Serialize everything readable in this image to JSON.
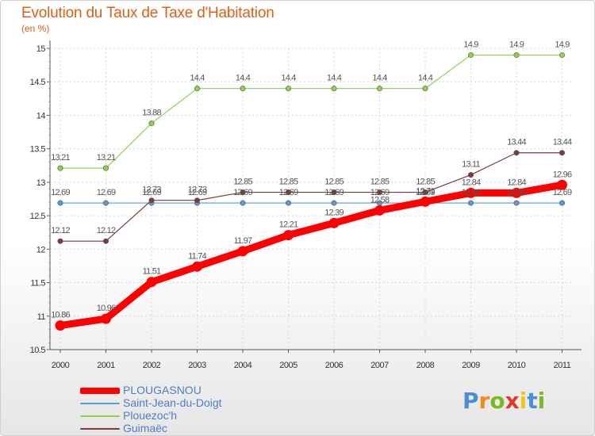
{
  "header": {
    "title": "Evolution du Taux de Taxe d'Habitation",
    "subtitle": "(en %)"
  },
  "chart_data": {
    "type": "line",
    "title": "Evolution du Taux de Taxe d'Habitation",
    "subtitle": "(en %)",
    "xlabel": "",
    "ylabel": "",
    "x": [
      "2000",
      "2001",
      "2002",
      "2003",
      "2004",
      "2005",
      "2006",
      "2007",
      "2008",
      "2009",
      "2010",
      "2011"
    ],
    "ylim": [
      10.5,
      15
    ],
    "yticks": [
      "10.5",
      "11",
      "11.5",
      "12",
      "12.5",
      "13",
      "13.5",
      "14",
      "14.5",
      "15"
    ],
    "grid": true,
    "legend_position": "bottom-left",
    "series": [
      {
        "name": "PLOUGASNOU",
        "color": "#ff0000",
        "values": [
          10.86,
          10.96,
          11.51,
          11.74,
          11.97,
          12.21,
          12.39,
          12.58,
          12.71,
          12.84,
          12.84,
          12.96
        ],
        "labels": [
          "10.86",
          "10.96",
          "11.51",
          "11.74",
          "11.97",
          "12.21",
          "12.39",
          "12.58",
          "12.71",
          "12.84",
          "12.84",
          "12.96"
        ]
      },
      {
        "name": "Saint-Jean-du-Doigt",
        "color": "#5b9bd5",
        "values": [
          12.69,
          12.69,
          12.69,
          12.69,
          12.69,
          12.69,
          12.69,
          12.69,
          12.69,
          12.69,
          12.69,
          12.69
        ],
        "labels": [
          "12.69",
          "12.69",
          "12.69",
          "12.69",
          "12.69",
          "12.69",
          "12.69",
          "12.69",
          "12.69",
          "12.69",
          "12.69",
          "12.69"
        ]
      },
      {
        "name": "Plouezoc'h",
        "color": "#8fd14f",
        "values": [
          13.21,
          13.21,
          13.88,
          14.4,
          14.4,
          14.4,
          14.4,
          14.4,
          14.4,
          14.9,
          14.9,
          14.9
        ],
        "labels": [
          "13.21",
          "13.21",
          "13.88",
          "14.4",
          "14.4",
          "14.4",
          "14.4",
          "14.4",
          "14.4",
          "14.9",
          "14.9",
          "14.9"
        ]
      },
      {
        "name": "Guimaëc",
        "color": "#7b3b3b",
        "values": [
          12.12,
          12.12,
          12.73,
          12.73,
          12.85,
          12.85,
          12.85,
          12.85,
          12.85,
          13.11,
          13.44,
          13.44
        ],
        "labels": [
          "12.12",
          "12.12",
          "12.73",
          "12.73",
          "12.85",
          "12.85",
          "12.85",
          "12.85",
          "12.85",
          "13.11",
          "13.44",
          "13.44"
        ]
      }
    ]
  },
  "legend": {
    "items": [
      {
        "label": "PLOUGASNOU",
        "color": "#ff0000"
      },
      {
        "label": "Saint-Jean-du-Doigt",
        "color": "#5b9bd5"
      },
      {
        "label": "Plouezoc'h",
        "color": "#8fd14f"
      },
      {
        "label": "Guimaëc",
        "color": "#7b3b3b"
      }
    ]
  },
  "logo": {
    "letters": [
      "P",
      "r",
      "o",
      "x",
      "i",
      "t",
      "i"
    ],
    "colors": [
      "#4b8fd6",
      "#f08a1c",
      "#79b928",
      "#e23a2a",
      "#f0c419",
      "#4b8fd6",
      "#79b928"
    ]
  }
}
